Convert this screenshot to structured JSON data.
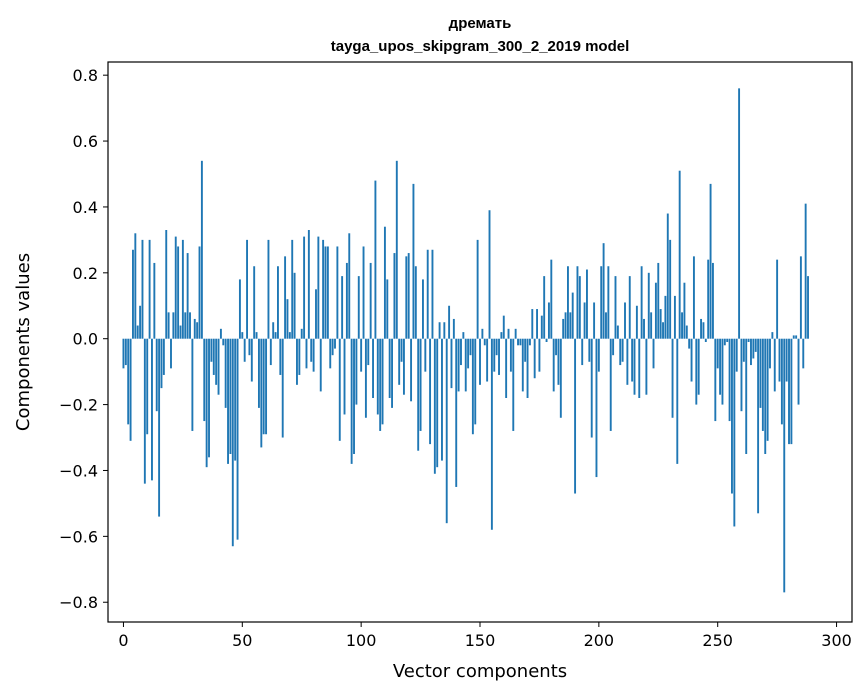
{
  "chart_data": {
    "type": "bar",
    "title_lines": [
      "дремать",
      "tayga_upos_skipgram_300_2_2019 model"
    ],
    "xlabel": "Vector components",
    "ylabel": "Components values",
    "xlim": [
      -6.5,
      306.5
    ],
    "ylim": [
      -0.86,
      0.84
    ],
    "xticks": [
      0,
      50,
      100,
      150,
      200,
      250,
      300
    ],
    "yticks": [
      -0.8,
      -0.6,
      -0.4,
      -0.2,
      0.0,
      0.2,
      0.4,
      0.6,
      0.8
    ],
    "ytick_labels": [
      "−0.8",
      "−0.6",
      "−0.4",
      "−0.2",
      "0.0",
      "0.2",
      "0.4",
      "0.6",
      "0.8"
    ],
    "bar_color": "#1f77b4",
    "values": [
      -0.09,
      -0.08,
      -0.26,
      -0.31,
      0.27,
      0.32,
      0.04,
      0.1,
      0.3,
      -0.44,
      -0.29,
      0.3,
      -0.43,
      0.23,
      -0.22,
      -0.54,
      -0.15,
      -0.11,
      0.33,
      0.08,
      -0.09,
      0.08,
      0.31,
      0.28,
      0.04,
      0.3,
      0.08,
      0.26,
      0.08,
      -0.28,
      0.06,
      0.05,
      0.28,
      0.54,
      -0.25,
      -0.39,
      -0.36,
      -0.07,
      -0.11,
      -0.14,
      -0.17,
      0.03,
      -0.02,
      -0.21,
      -0.38,
      -0.35,
      -0.63,
      -0.37,
      -0.61,
      0.18,
      0.02,
      -0.07,
      0.3,
      -0.05,
      -0.13,
      0.22,
      0.02,
      -0.21,
      -0.33,
      -0.29,
      -0.29,
      0.3,
      -0.08,
      0.05,
      0.02,
      0.22,
      -0.11,
      -0.3,
      0.25,
      0.12,
      0.02,
      0.3,
      0.2,
      -0.14,
      -0.11,
      0.03,
      0.31,
      -0.09,
      0.33,
      -0.07,
      -0.1,
      0.15,
      0.31,
      -0.16,
      0.3,
      0.28,
      0.28,
      -0.09,
      -0.05,
      -0.03,
      0.28,
      -0.31,
      0.19,
      -0.23,
      0.23,
      0.32,
      -0.38,
      -0.35,
      -0.2,
      0.19,
      -0.1,
      0.28,
      -0.24,
      -0.08,
      0.23,
      -0.18,
      0.48,
      -0.23,
      -0.28,
      -0.26,
      0.34,
      0.18,
      -0.18,
      -0.21,
      0.26,
      0.54,
      -0.14,
      -0.07,
      -0.17,
      0.25,
      0.26,
      -0.19,
      0.47,
      0.22,
      -0.34,
      -0.28,
      0.18,
      -0.1,
      0.27,
      -0.32,
      0.27,
      -0.41,
      -0.39,
      0.05,
      -0.37,
      0.05,
      -0.56,
      0.1,
      -0.15,
      0.06,
      -0.45,
      -0.16,
      -0.08,
      0.02,
      -0.16,
      -0.09,
      -0.05,
      -0.29,
      -0.26,
      0.3,
      -0.14,
      0.03,
      -0.02,
      -0.13,
      0.39,
      -0.58,
      -0.1,
      -0.05,
      -0.11,
      0.02,
      0.07,
      -0.18,
      0.03,
      -0.1,
      -0.28,
      0.03,
      -0.02,
      -0.02,
      -0.16,
      -0.07,
      -0.18,
      -0.02,
      0.09,
      -0.12,
      0.09,
      -0.1,
      0.07,
      0.19,
      -0.01,
      0.11,
      0.24,
      -0.16,
      -0.05,
      -0.14,
      -0.24,
      0.06,
      0.08,
      0.22,
      0.08,
      0.14,
      -0.47,
      0.22,
      0.19,
      -0.08,
      0.11,
      0.21,
      -0.07,
      -0.3,
      0.11,
      -0.42,
      -0.1,
      0.22,
      0.29,
      0.08,
      0.22,
      -0.28,
      -0.05,
      0.19,
      0.04,
      -0.08,
      -0.07,
      0.11,
      -0.14,
      0.19,
      -0.13,
      -0.17,
      0.1,
      -0.18,
      0.22,
      0.06,
      -0.17,
      0.2,
      0.08,
      -0.09,
      0.17,
      0.23,
      0.09,
      0.05,
      0.13,
      0.38,
      0.3,
      -0.24,
      0.13,
      -0.38,
      0.51,
      0.08,
      0.17,
      0.04,
      -0.03,
      -0.13,
      0.25,
      -0.2,
      -0.17,
      0.06,
      0.05,
      -0.01,
      0.24,
      0.47,
      0.23,
      -0.25,
      -0.09,
      -0.17,
      -0.2,
      -0.02,
      -0.01,
      -0.25,
      -0.47,
      -0.57,
      -0.1,
      0.76,
      -0.22,
      -0.07,
      -0.35,
      -0.01,
      -0.08,
      -0.06,
      -0.04,
      -0.53,
      -0.21,
      -0.28,
      -0.35,
      -0.31,
      -0.09,
      0.02,
      -0.16,
      0.24,
      -0.13,
      -0.26,
      -0.77,
      -0.13,
      -0.32,
      -0.32,
      0.01,
      0.01,
      -0.2,
      0.25,
      -0.09,
      0.41,
      0.19
    ]
  }
}
